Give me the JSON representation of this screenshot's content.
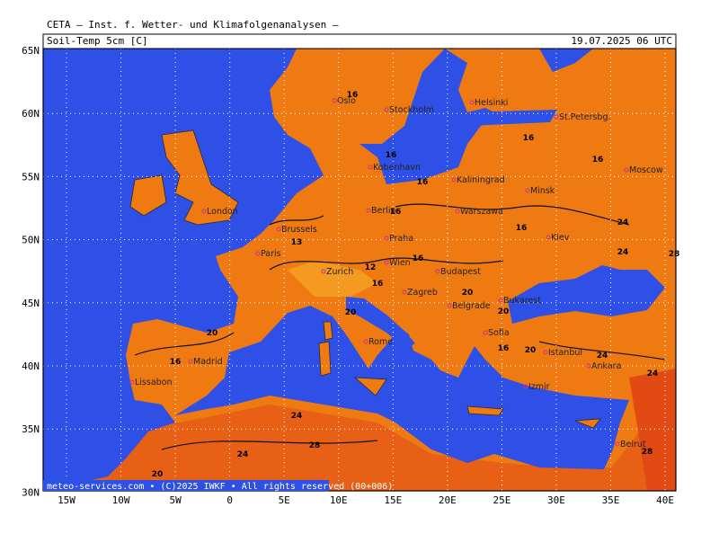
{
  "header": "CETA — Inst. f. Wetter- und Klimafolgenanalysen —",
  "title_left": "Soil-Temp 5cm [C]",
  "title_right": "19.07.2025 06 UTC",
  "lat_labels": [
    "65N",
    "60N",
    "55N",
    "50N",
    "45N",
    "40N",
    "35N",
    "30N"
  ],
  "lon_labels": [
    "15W",
    "10W",
    "5W",
    "0",
    "5E",
    "10E",
    "15E",
    "20E",
    "25E",
    "30E",
    "35E",
    "40E"
  ],
  "cities": [
    "London",
    "Paris",
    "Brussels",
    "Oslo",
    "Stockholm",
    "Helsinki",
    "St.Petersbg.",
    "Kobenhavn",
    "Kaliningrad",
    "Minsk",
    "Moscow",
    "Berlin",
    "Warszawa",
    "Praha",
    "Kiev",
    "Wien",
    "Budapest",
    "Zurich",
    "Zagreb",
    "Belgrade",
    "Bukarest",
    "Sofia",
    "Rome",
    "Madrid",
    "Lissabon",
    "Istanbul",
    "Ankara",
    "Izmir",
    "Beirut"
  ],
  "contour_labels": [
    16,
    16,
    16,
    16,
    16,
    16,
    16,
    16,
    16,
    13,
    12,
    16,
    20,
    20,
    20,
    20,
    24,
    24,
    24,
    24,
    24,
    28,
    28,
    24,
    28,
    20,
    20,
    16
  ],
  "footer": "meteo-services.com • (C)2025 IWKF • All rights reserved (00+006)"
}
